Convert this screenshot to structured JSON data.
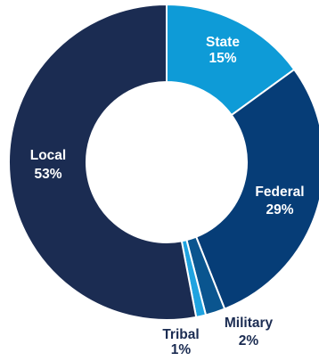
{
  "chart_data": {
    "type": "pie",
    "variant": "donut",
    "title": "",
    "categories": [
      "State",
      "Federal",
      "Military",
      "Tribal",
      "Local"
    ],
    "values": [
      15,
      29,
      2,
      1,
      53
    ],
    "value_labels": [
      "15%",
      "29%",
      "2%",
      "1%",
      "53%"
    ],
    "colors": [
      "#0e9bd7",
      "#063d77",
      "#0a558f",
      "#1fa3e0",
      "#1b2c52"
    ],
    "label_colors": [
      "#ffffff",
      "#ffffff",
      "#1b2c52",
      "#1b2c52",
      "#ffffff"
    ],
    "legend": "none",
    "start_angle_deg": 0,
    "direction": "clockwise"
  }
}
